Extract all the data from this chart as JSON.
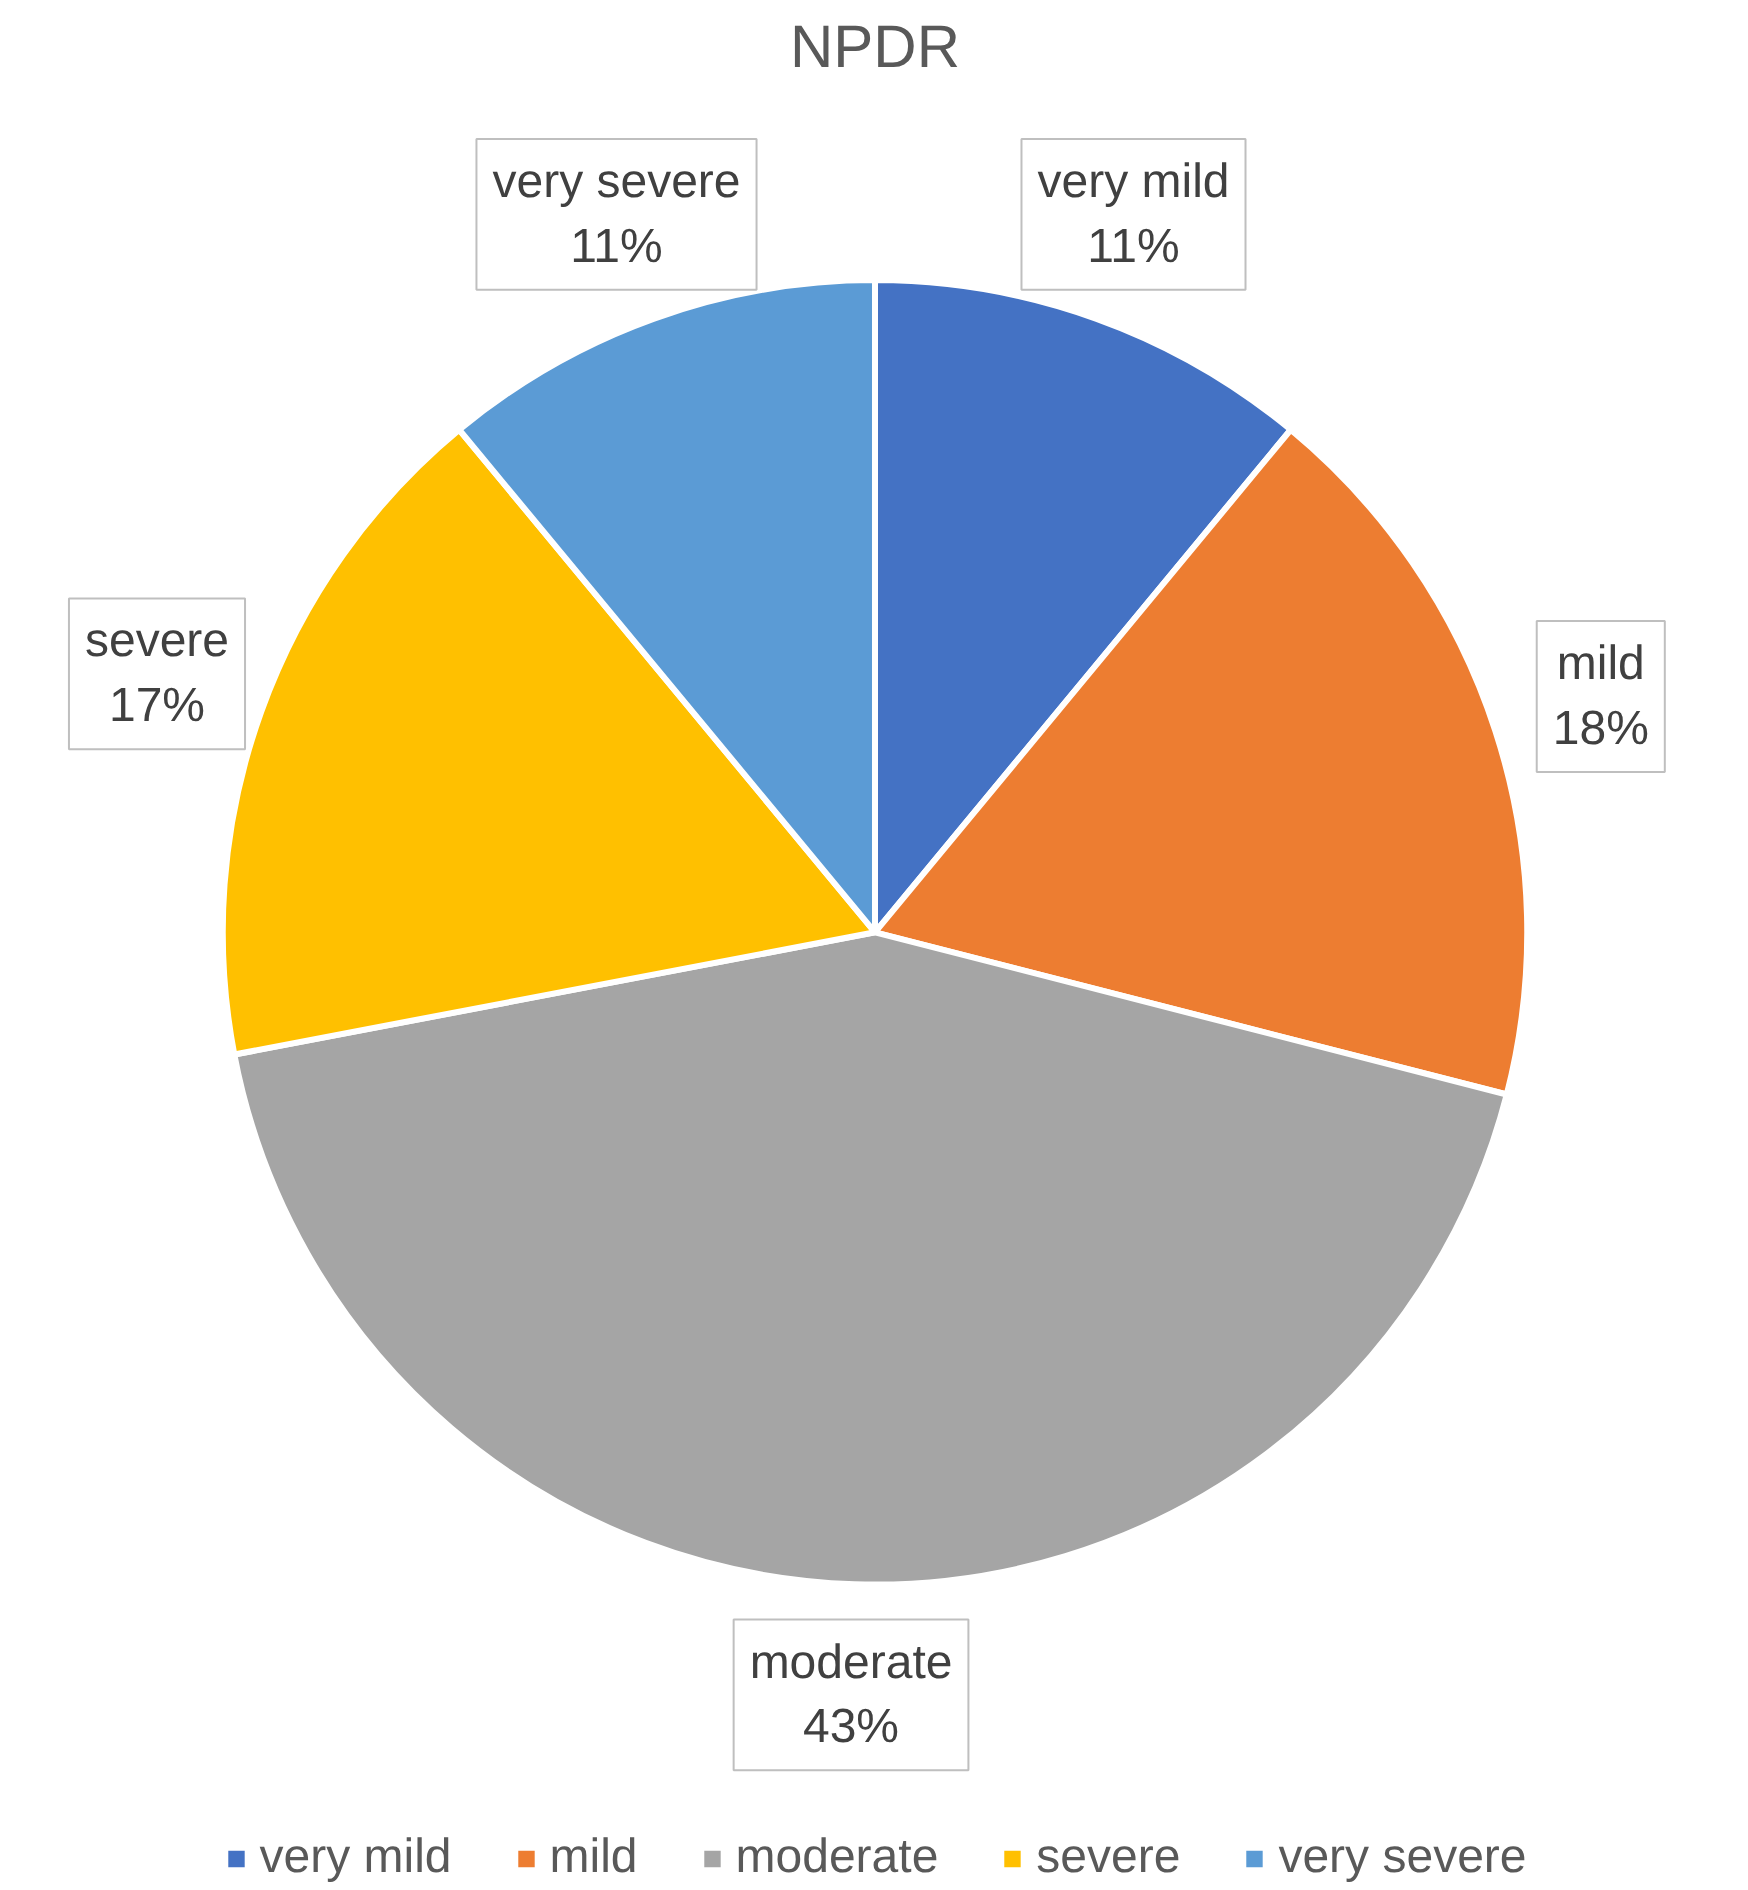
{
  "chart_data": {
    "type": "pie",
    "title": "NPDR",
    "categories": [
      "very mild",
      "mild",
      "moderate",
      "severe",
      "very severe"
    ],
    "values": [
      11,
      18,
      43,
      17,
      11
    ],
    "colors": [
      "#4472c4",
      "#ed7d31",
      "#a5a5a5",
      "#ffc000",
      "#5b9bd5"
    ],
    "value_labels": [
      "11%",
      "18%",
      "43%",
      "17%",
      "11%"
    ],
    "legend": "bottom"
  }
}
